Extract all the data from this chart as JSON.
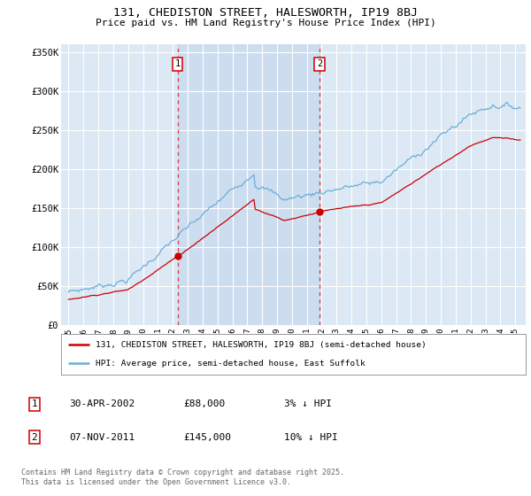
{
  "title": "131, CHEDISTON STREET, HALESWORTH, IP19 8BJ",
  "subtitle": "Price paid vs. HM Land Registry's House Price Index (HPI)",
  "ylabel_ticks": [
    "£0",
    "£50K",
    "£100K",
    "£150K",
    "£200K",
    "£250K",
    "£300K",
    "£350K"
  ],
  "ytick_values": [
    0,
    50000,
    100000,
    150000,
    200000,
    250000,
    300000,
    350000
  ],
  "ylim": [
    0,
    360000
  ],
  "xlim_start": 1994.5,
  "xlim_end": 2025.7,
  "background_color": "#dce9f5",
  "plot_bg_color": "#dce9f5",
  "grid_color": "#ffffff",
  "hpi_line_color": "#6aaed6",
  "price_line_color": "#cc0000",
  "sale1_x": 2002.33,
  "sale1_y": 88000,
  "sale1_label": "1",
  "sale2_x": 2011.85,
  "sale2_y": 145000,
  "sale2_label": "2",
  "vline_color": "#dd4444",
  "shade_color": "#c8d8ef",
  "legend_line1": "131, CHEDISTON STREET, HALESWORTH, IP19 8BJ (semi-detached house)",
  "legend_line2": "HPI: Average price, semi-detached house, East Suffolk",
  "table_row1": [
    "1",
    "30-APR-2002",
    "£88,000",
    "3% ↓ HPI"
  ],
  "table_row2": [
    "2",
    "07-NOV-2011",
    "£145,000",
    "10% ↓ HPI"
  ],
  "footnote": "Contains HM Land Registry data © Crown copyright and database right 2025.\nThis data is licensed under the Open Government Licence v3.0.",
  "xtick_years": [
    1995,
    1996,
    1997,
    1998,
    1999,
    2000,
    2001,
    2002,
    2003,
    2004,
    2005,
    2006,
    2007,
    2008,
    2009,
    2010,
    2011,
    2012,
    2013,
    2014,
    2015,
    2016,
    2017,
    2018,
    2019,
    2020,
    2021,
    2022,
    2023,
    2024,
    2025
  ]
}
